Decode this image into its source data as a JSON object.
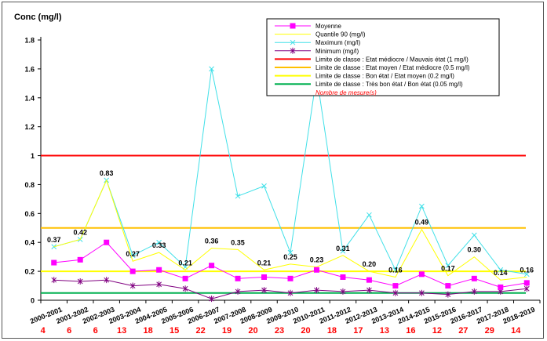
{
  "chart_data": {
    "type": "line",
    "ylabel": "Conc (mg/l)",
    "ylim": [
      0,
      1.8
    ],
    "yticks": [
      "0",
      "0.2",
      "0.4",
      "0.6",
      "0.8",
      "1",
      "1.2",
      "1.4",
      "1.6",
      "1.8"
    ],
    "grid": false,
    "legend_position": "top-right",
    "categories": [
      "2000-2001",
      "2001-2002",
      "2002-2003",
      "2003-2004",
      "2004-2005",
      "2005-2006",
      "2006-2007",
      "2007-2008",
      "2008-2009",
      "2009-2010",
      "2010-2011",
      "2011-2012",
      "2012-2013",
      "2013-2014",
      "2014-2015",
      "2015-2016",
      "2016-2017",
      "2017-2018",
      "2018-2019"
    ],
    "measure_counts": [
      "4",
      "6",
      "6",
      "13",
      "18",
      "15",
      "22",
      "19",
      "20",
      "23",
      "20",
      "18",
      "17",
      "13",
      "16",
      "12",
      "27",
      "29",
      "14"
    ],
    "series": [
      {
        "name": "Moyenne",
        "color": "#ff00ff",
        "marker": "square",
        "values": [
          0.26,
          0.28,
          0.4,
          0.2,
          0.21,
          0.15,
          0.24,
          0.15,
          0.16,
          0.15,
          0.21,
          0.16,
          0.14,
          0.1,
          0.18,
          0.1,
          0.15,
          0.09,
          0.12
        ]
      },
      {
        "name": "Quantile 90 (mg/l)",
        "color": "#ffff00",
        "marker": "none",
        "values": [
          0.37,
          0.42,
          0.83,
          0.27,
          0.33,
          0.21,
          0.36,
          0.35,
          0.21,
          0.25,
          0.23,
          0.31,
          0.2,
          0.16,
          0.49,
          0.17,
          0.3,
          0.14,
          0.16
        ]
      },
      {
        "name": "Maximum (mg/l)",
        "color": "#40e0e8",
        "marker": "cross",
        "values": [
          0.37,
          0.42,
          0.83,
          0.31,
          0.4,
          0.23,
          1.6,
          0.72,
          0.79,
          0.33,
          1.55,
          0.34,
          0.59,
          0.21,
          0.65,
          0.24,
          0.45,
          0.21,
          0.18
        ]
      },
      {
        "name": "Minimum (mg/l)",
        "color": "#800080",
        "marker": "star",
        "values": [
          0.14,
          0.13,
          0.14,
          0.1,
          0.11,
          0.08,
          0.01,
          0.06,
          0.07,
          0.05,
          0.07,
          0.06,
          0.07,
          0.05,
          0.05,
          0.04,
          0.06,
          0.06,
          0.08
        ]
      }
    ],
    "data_labels": {
      "series": "Quantile 90 (mg/l)",
      "texts": [
        "0.37",
        "0.42",
        "0.83",
        "0.27",
        "0.33",
        "0.21",
        "0.36",
        "0.35",
        "0.21",
        "0.25",
        "0.23",
        "0.31",
        "0.20",
        "0.16",
        "0.49",
        "0.17",
        "0.30",
        "0.14",
        "0.16"
      ]
    },
    "thresholds": [
      {
        "name": "Limite de classe : Etat médiocre / Mauvais état (1 mg/l)",
        "value": 1.0,
        "color": "#ff0000"
      },
      {
        "name": "Limite de classe : Etat moyen / Etat médiocre (0.5 mg/l)",
        "value": 0.5,
        "color": "#ffc000"
      },
      {
        "name": "Limite de classe : Bon état / Etat moyen (0.2 mg/l)",
        "value": 0.2,
        "color": "#ffff00"
      },
      {
        "name": "Limite de classe : Très bon état / Bon état (0.05 mg/l)",
        "value": 0.05,
        "color": "#00b050"
      }
    ],
    "count_legend": {
      "name": "Nombre de mesure(s)",
      "color": "#ff0000"
    }
  }
}
